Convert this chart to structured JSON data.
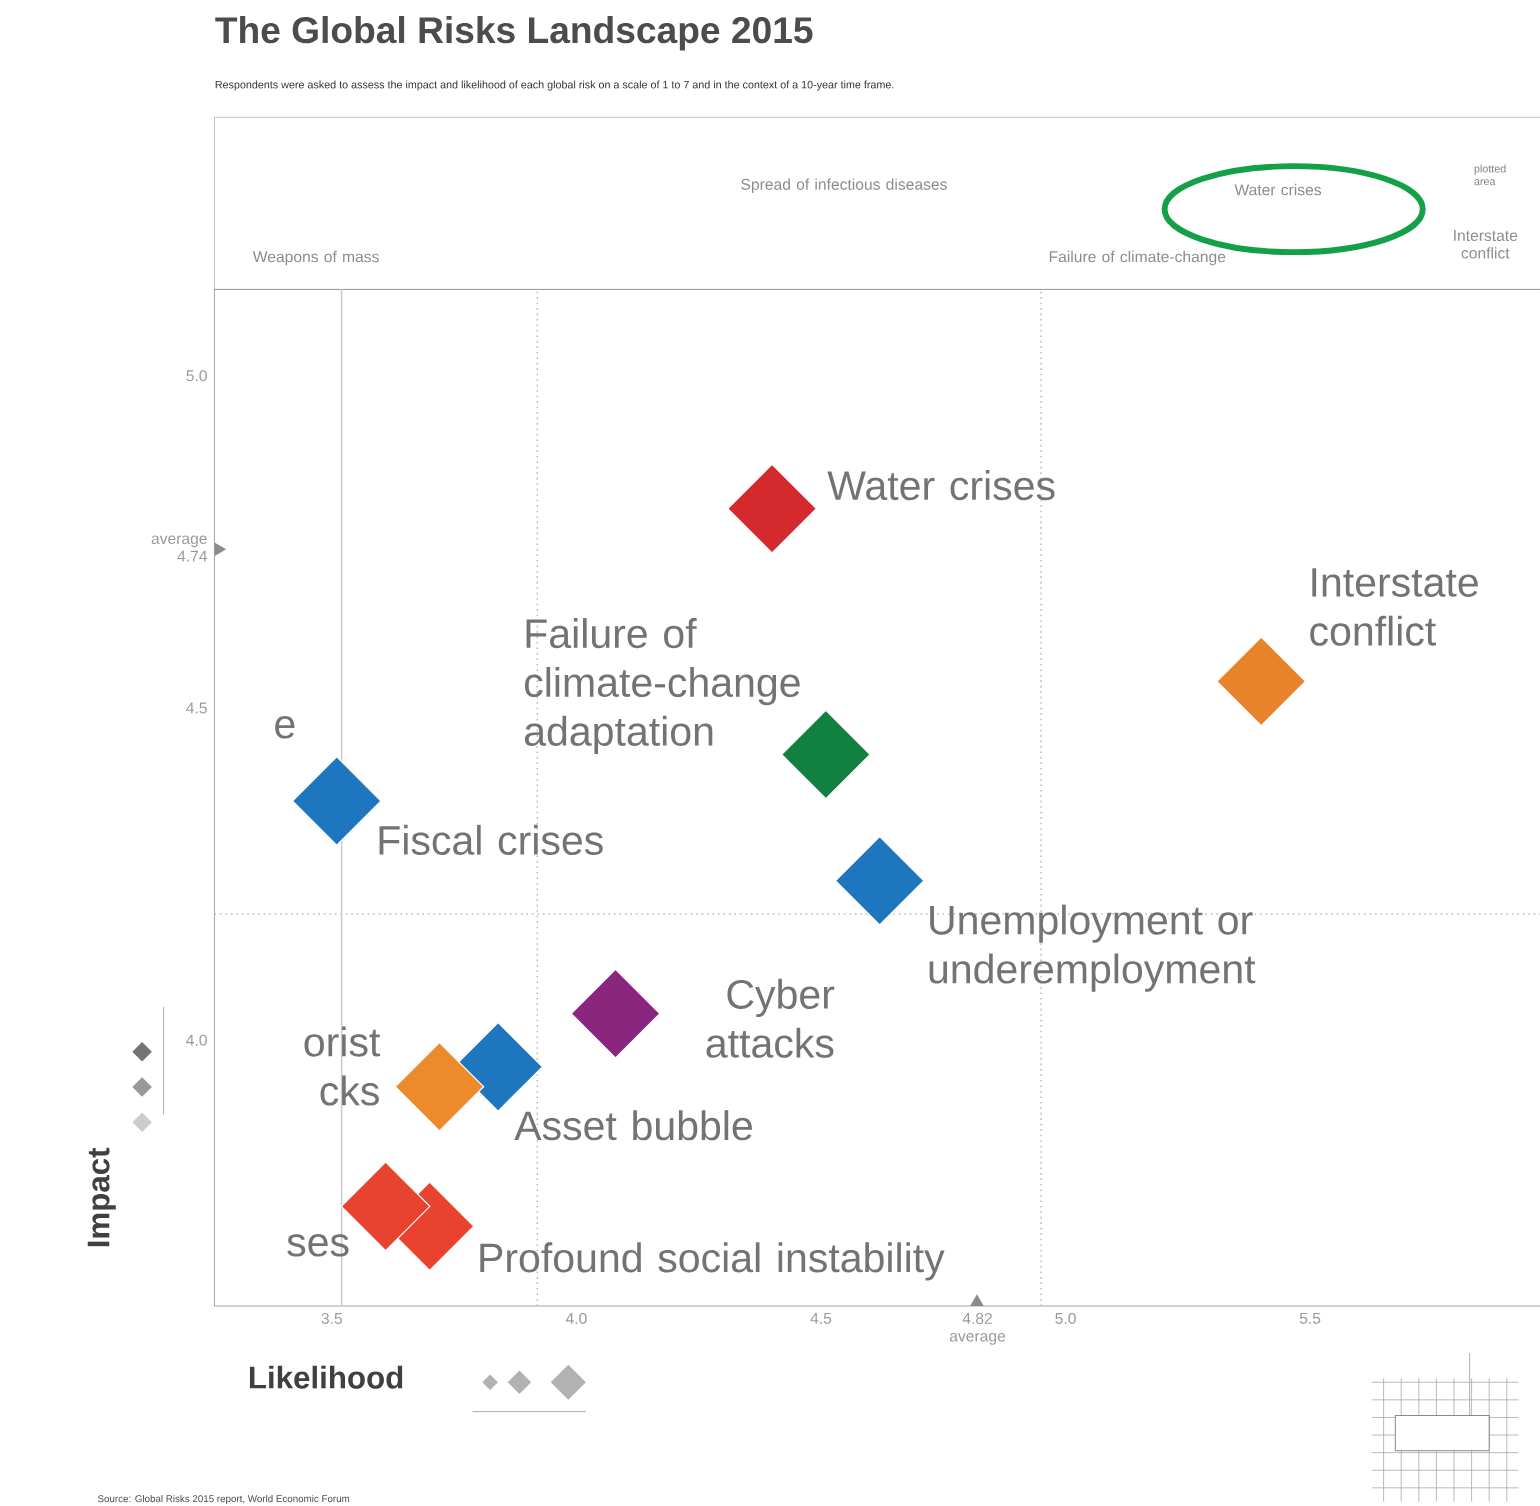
{
  "chart_data": {
    "type": "scatter",
    "title": "The Global Risks Landscape 2015",
    "subtitle": "Respondents were asked to assess the impact and likelihood of each global risk on a scale of 1 to 7 and in the context of a 10-year time frame.",
    "xlabel": "Likelihood",
    "ylabel": "Impact",
    "marker": "diamond",
    "xlim": [
      3.26,
      5.97
    ],
    "ylim": [
      3.6,
      5.13
    ],
    "xticks": [
      {
        "value": 3.5,
        "label": "3.5"
      },
      {
        "value": 4.0,
        "label": "4.0"
      },
      {
        "value": 4.5,
        "label": "4.5"
      },
      {
        "value": 4.82,
        "label": "4.82 average"
      },
      {
        "value": 5.0,
        "label": "5.0"
      },
      {
        "value": 5.5,
        "label": "5.5"
      }
    ],
    "yticks": [
      {
        "value": 4.0,
        "label": "4.0"
      },
      {
        "value": 4.5,
        "label": "4.5"
      },
      {
        "value": 4.74,
        "label": "average 4.74"
      },
      {
        "value": 5.0,
        "label": "5.0"
      }
    ],
    "series": [
      {
        "name": "Water crises",
        "color": "#d42a2e",
        "x": [
          4.4
        ],
        "values": [
          4.8
        ]
      },
      {
        "name": "Failure of climate-change adaptation",
        "color": "#128040",
        "x": [
          4.51
        ],
        "values": [
          4.43
        ]
      },
      {
        "name": "Interstate conflict",
        "color": "#e8832c",
        "x": [
          5.4
        ],
        "values": [
          4.54
        ]
      },
      {
        "name": "Fiscal crises",
        "color": "#1e76be",
        "x": [
          3.51
        ],
        "values": [
          4.36
        ]
      },
      {
        "name": "Unemployment or underemployment",
        "color": "#1e76be",
        "x": [
          4.62
        ],
        "values": [
          4.24
        ]
      },
      {
        "name": "Cyber attacks",
        "color": "#8b267f",
        "x": [
          4.08
        ],
        "values": [
          4.04
        ]
      },
      {
        "name": "Asset bubble",
        "color": "#1e76be",
        "x": [
          3.84
        ],
        "values": [
          3.96
        ]
      },
      {
        "name": "orist cks",
        "color": "#ec8a2c",
        "x": [
          3.72
        ],
        "values": [
          3.93
        ]
      },
      {
        "name": "Profound social instability",
        "color": "#e8432e",
        "x": [
          3.7
        ],
        "values": [
          3.72
        ]
      },
      {
        "name": "ses",
        "color": "#e8432e",
        "x": [
          3.61
        ],
        "values": [
          3.75
        ]
      }
    ],
    "ref_lines": [
      {
        "axis": "x",
        "value": 3.92,
        "line_style": "dotted",
        "color": "#bbbbbb"
      },
      {
        "axis": "x",
        "value": 4.95,
        "line_style": "dotted",
        "color": "#bbbbbb"
      },
      {
        "axis": "y",
        "value": 4.19,
        "line_style": "dotted",
        "color": "#bbbbbb"
      },
      {
        "axis": "x",
        "value": 3.52,
        "line_style": "solid",
        "color": "#cccccc"
      }
    ],
    "annotations": [
      "Weapons of mass",
      "Spread of infectious diseases",
      "Water crises",
      "Failure of climate-change",
      "Interstate conflict",
      "e",
      "plotted area",
      "Source: Global Risks 2015 report, World Economic Forum"
    ]
  }
}
